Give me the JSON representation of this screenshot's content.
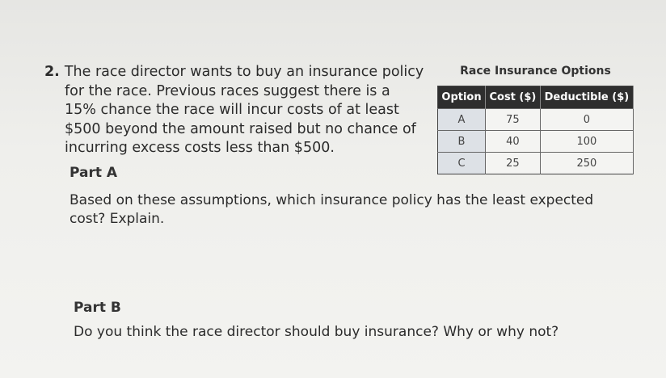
{
  "question": {
    "number": "2.",
    "lines": [
      "The race director wants to buy an insurance policy",
      "for the race. Previous races suggest there is a",
      "15% chance the race will incur costs of at least",
      "$500 beyond the amount raised but no chance of",
      "incurring excess costs less than $500."
    ]
  },
  "table": {
    "title": "Race Insurance Options",
    "headers": [
      "Option",
      "Cost ($)",
      "Deductible ($)"
    ],
    "rows": [
      [
        "A",
        "75",
        "0"
      ],
      [
        "B",
        "40",
        "100"
      ],
      [
        "C",
        "25",
        "250"
      ]
    ]
  },
  "part_a": {
    "label": "Part A",
    "lines": [
      "Based on these assumptions, which insurance policy has the least expected",
      "cost? Explain."
    ]
  },
  "part_b": {
    "label": "Part B",
    "text": "Do you think the race director should buy insurance? Why or why not?"
  }
}
